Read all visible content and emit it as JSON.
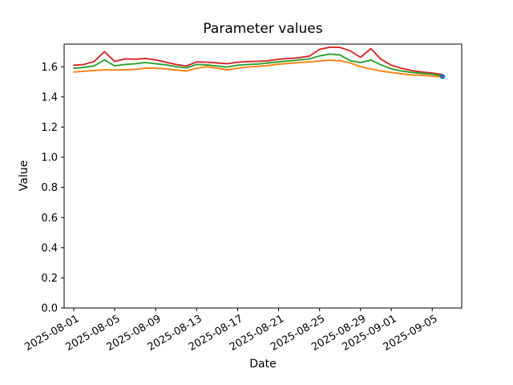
{
  "chart_data": {
    "type": "line",
    "title": "Parameter values",
    "xlabel": "Date",
    "ylabel": "Value",
    "grid": false,
    "legend": false,
    "background_color": "#ffffff",
    "axis_color": "#000000",
    "ylim": [
      0.0,
      1.75
    ],
    "yticks": [
      0.0,
      0.2,
      0.4,
      0.6,
      0.8,
      1.0,
      1.2,
      1.4,
      1.6
    ],
    "ytick_labels": [
      "0.0",
      "0.2",
      "0.4",
      "0.6",
      "0.8",
      "1.0",
      "1.2",
      "1.4",
      "1.6"
    ],
    "xticks": [
      {
        "day": 0,
        "label": "2025-08-01"
      },
      {
        "day": 4,
        "label": "2025-08-05"
      },
      {
        "day": 8,
        "label": "2025-08-09"
      },
      {
        "day": 12,
        "label": "2025-08-13"
      },
      {
        "day": 16,
        "label": "2025-08-17"
      },
      {
        "day": 20,
        "label": "2025-08-21"
      },
      {
        "day": 24,
        "label": "2025-08-25"
      },
      {
        "day": 28,
        "label": "2025-08-29"
      },
      {
        "day": 31,
        "label": "2025-09-01"
      },
      {
        "day": 35,
        "label": "2025-09-05"
      }
    ],
    "x": [
      "2025-08-01",
      "2025-08-02",
      "2025-08-03",
      "2025-08-04",
      "2025-08-05",
      "2025-08-06",
      "2025-08-07",
      "2025-08-08",
      "2025-08-09",
      "2025-08-10",
      "2025-08-11",
      "2025-08-12",
      "2025-08-13",
      "2025-08-14",
      "2025-08-15",
      "2025-08-16",
      "2025-08-17",
      "2025-08-18",
      "2025-08-19",
      "2025-08-20",
      "2025-08-21",
      "2025-08-22",
      "2025-08-23",
      "2025-08-24",
      "2025-08-25",
      "2025-08-26",
      "2025-08-27",
      "2025-08-28",
      "2025-08-29",
      "2025-08-30",
      "2025-08-31",
      "2025-09-01",
      "2025-09-02",
      "2025-09-03",
      "2025-09-04",
      "2025-09-05",
      "2025-09-06"
    ],
    "series": [
      {
        "name": "red",
        "color": "#d62728",
        "values": [
          1.61,
          1.615,
          1.635,
          1.7,
          1.635,
          1.652,
          1.65,
          1.655,
          1.645,
          1.63,
          1.615,
          1.605,
          1.632,
          1.63,
          1.625,
          1.62,
          1.63,
          1.634,
          1.636,
          1.64,
          1.65,
          1.655,
          1.66,
          1.67,
          1.715,
          1.73,
          1.728,
          1.705,
          1.662,
          1.72,
          1.65,
          1.61,
          1.59,
          1.575,
          1.565,
          1.558,
          1.548
        ]
      },
      {
        "name": "green",
        "color": "#2ca02c",
        "values": [
          1.59,
          1.596,
          1.606,
          1.645,
          1.606,
          1.615,
          1.62,
          1.628,
          1.62,
          1.613,
          1.6,
          1.592,
          1.615,
          1.612,
          1.605,
          1.598,
          1.61,
          1.615,
          1.618,
          1.625,
          1.633,
          1.638,
          1.645,
          1.652,
          1.672,
          1.684,
          1.678,
          1.64,
          1.628,
          1.644,
          1.613,
          1.586,
          1.572,
          1.562,
          1.556,
          1.55,
          1.54
        ]
      },
      {
        "name": "orange",
        "color": "#ff7f0e",
        "values": [
          1.565,
          1.57,
          1.575,
          1.58,
          1.578,
          1.58,
          1.583,
          1.59,
          1.59,
          1.585,
          1.578,
          1.572,
          1.59,
          1.6,
          1.59,
          1.58,
          1.59,
          1.598,
          1.602,
          1.608,
          1.617,
          1.622,
          1.628,
          1.632,
          1.638,
          1.643,
          1.64,
          1.625,
          1.6,
          1.585,
          1.572,
          1.562,
          1.553,
          1.545,
          1.543,
          1.538,
          1.532
        ]
      }
    ],
    "marker_point": {
      "date": "2025-09-06",
      "value": 1.535,
      "color": "#1f77b4"
    }
  }
}
